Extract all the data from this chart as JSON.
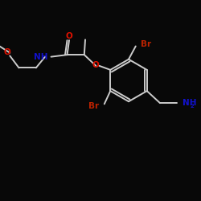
{
  "background_color": "#080808",
  "bond_color": "#cccccc",
  "atom_colors": {
    "O": "#dd1100",
    "N": "#1111cc",
    "Br": "#bb2200"
  },
  "bond_width": 1.4,
  "font_size": 7.5
}
